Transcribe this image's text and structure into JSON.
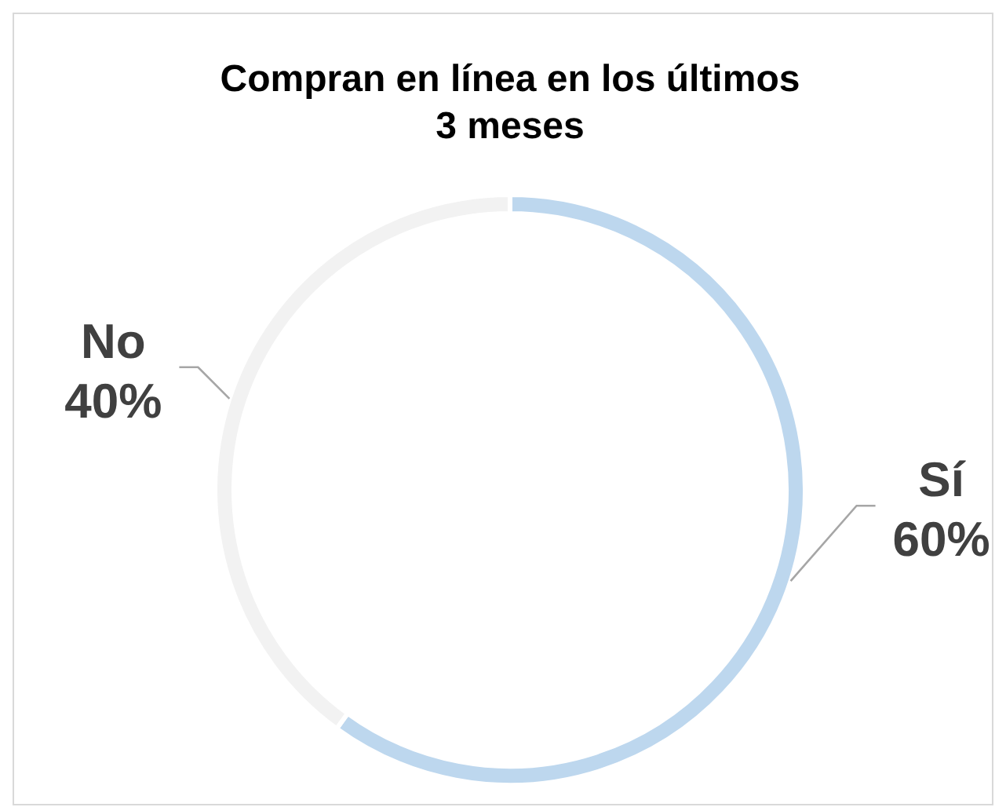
{
  "chart_data": {
    "type": "donut",
    "title": "Compran en línea en los últimos\n3 meses",
    "categories": [
      "Sí",
      "No"
    ],
    "values": [
      60,
      40
    ],
    "value_labels": [
      "60%",
      "40%"
    ],
    "colors": [
      "#bdd7ee",
      "#f2f2f2"
    ],
    "legend": false
  }
}
